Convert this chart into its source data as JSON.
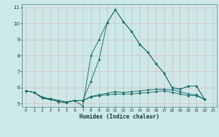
{
  "xlabel": "Humidex (Indice chaleur)",
  "background_color": "#cde8e8",
  "grid_color": "#b8d8d8",
  "line_color": "#1e6b6b",
  "xlim": [
    -0.5,
    23.5
  ],
  "ylim": [
    4.8,
    11.2
  ],
  "yticks": [
    5,
    6,
    7,
    8,
    9,
    10,
    11
  ],
  "xticks": [
    0,
    1,
    2,
    3,
    4,
    5,
    6,
    7,
    8,
    9,
    10,
    11,
    12,
    13,
    14,
    15,
    16,
    17,
    18,
    19,
    20,
    21,
    22,
    23
  ],
  "series": [
    [
      5.8,
      5.7,
      5.4,
      5.3,
      5.1,
      5.05,
      5.2,
      4.85,
      8.0,
      9.0,
      10.05,
      10.85,
      10.1,
      9.5,
      8.7,
      8.2,
      7.5,
      6.9,
      6.0,
      5.9,
      6.1,
      6.1,
      5.25
    ],
    [
      5.8,
      5.7,
      5.4,
      5.3,
      5.2,
      5.1,
      5.2,
      5.2,
      6.4,
      7.75,
      10.05,
      10.85,
      10.1,
      9.5,
      8.7,
      8.2,
      7.5,
      6.9,
      6.0,
      5.9,
      6.1,
      6.1,
      5.25
    ],
    [
      5.8,
      5.7,
      5.35,
      5.25,
      5.2,
      5.1,
      5.2,
      5.2,
      5.45,
      5.55,
      5.65,
      5.75,
      5.7,
      5.75,
      5.8,
      5.85,
      5.9,
      5.9,
      5.85,
      5.75,
      5.6,
      5.55,
      5.25
    ],
    [
      5.8,
      5.7,
      5.35,
      5.25,
      5.2,
      5.1,
      5.2,
      5.2,
      5.4,
      5.5,
      5.55,
      5.6,
      5.6,
      5.6,
      5.65,
      5.7,
      5.75,
      5.8,
      5.7,
      5.6,
      5.5,
      5.5,
      5.25
    ]
  ]
}
